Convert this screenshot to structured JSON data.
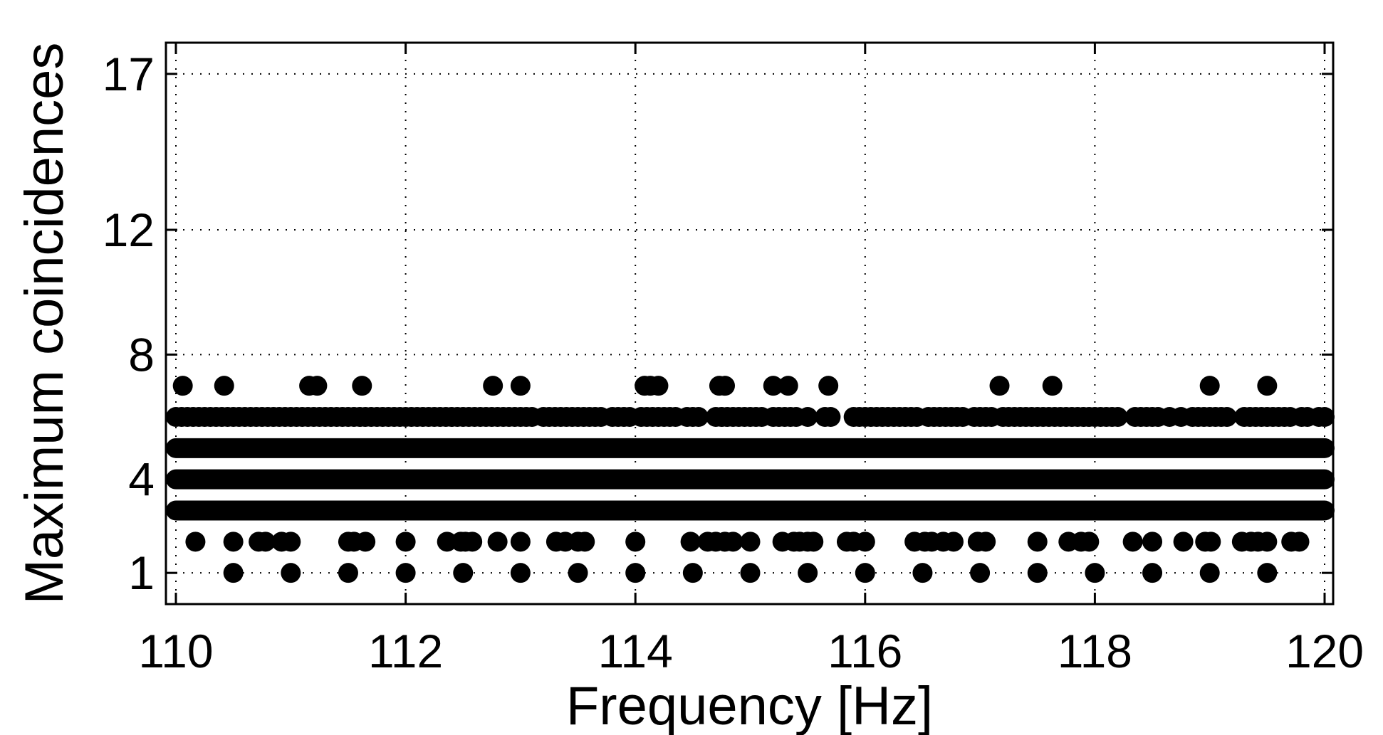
{
  "chart_data": {
    "type": "scatter",
    "xlabel": "Frequency [Hz]",
    "ylabel": "Maximum coincidences",
    "xlim": [
      110,
      120
    ],
    "ylim": [
      0,
      18
    ],
    "xticks": [
      110,
      112,
      114,
      116,
      118,
      120
    ],
    "yticks": [
      1,
      4,
      8,
      12,
      17
    ],
    "grid": true,
    "marker_color": "#000000",
    "series": [
      {
        "dense_levels": [
          3,
          4,
          5
        ],
        "dense_x_range": [
          110,
          120
        ],
        "points": [
          {
            "y": 7,
            "x": [
              110.06,
              110.42,
              111.16,
              111.23,
              111.62,
              112.76,
              113.0,
              114.08,
              114.13,
              114.2,
              114.73,
              114.78,
              115.2,
              115.33,
              115.68,
              117.17,
              117.63,
              119.0,
              119.5
            ]
          },
          {
            "y": 6,
            "x": [
              110.0,
              110.05,
              110.1,
              110.15,
              110.2,
              110.25,
              110.3,
              110.35,
              110.4,
              110.45,
              110.5,
              110.55,
              110.6,
              110.65,
              110.7,
              110.75,
              110.8,
              110.85,
              110.9,
              110.95,
              111.0,
              111.05,
              111.1,
              111.15,
              111.2,
              111.25,
              111.3,
              111.35,
              111.4,
              111.45,
              111.5,
              111.55,
              111.6,
              111.65,
              111.7,
              111.75,
              111.8,
              111.85,
              111.9,
              111.95,
              112.0,
              112.05,
              112.1,
              112.15,
              112.2,
              112.25,
              112.3,
              112.35,
              112.4,
              112.45,
              112.5,
              112.55,
              112.6,
              112.65,
              112.7,
              112.75,
              112.8,
              112.85,
              112.9,
              112.95,
              113.0,
              113.05,
              113.1,
              113.2,
              113.25,
              113.3,
              113.35,
              113.4,
              113.45,
              113.5,
              113.55,
              113.6,
              113.65,
              113.7,
              113.8,
              113.85,
              113.9,
              113.95,
              114.05,
              114.1,
              114.15,
              114.2,
              114.25,
              114.3,
              114.35,
              114.45,
              114.5,
              114.55,
              114.7,
              114.75,
              114.8,
              114.85,
              114.9,
              114.95,
              115.0,
              115.05,
              115.1,
              115.2,
              115.25,
              115.3,
              115.35,
              115.4,
              115.5,
              115.65,
              115.7,
              115.9,
              115.95,
              116.0,
              116.05,
              116.1,
              116.15,
              116.2,
              116.25,
              116.3,
              116.35,
              116.4,
              116.45,
              116.55,
              116.6,
              116.65,
              116.7,
              116.75,
              116.8,
              116.85,
              116.95,
              117.0,
              117.05,
              117.1,
              117.2,
              117.25,
              117.3,
              117.35,
              117.4,
              117.45,
              117.5,
              117.55,
              117.6,
              117.65,
              117.7,
              117.75,
              117.8,
              117.85,
              117.9,
              117.95,
              118.0,
              118.05,
              118.1,
              118.15,
              118.2,
              118.35,
              118.4,
              118.45,
              118.5,
              118.55,
              118.65,
              118.75,
              118.85,
              118.9,
              118.95,
              119.0,
              119.05,
              119.1,
              119.15,
              119.3,
              119.35,
              119.4,
              119.45,
              119.5,
              119.55,
              119.6,
              119.65,
              119.7,
              119.8,
              119.85,
              119.95,
              120.0
            ]
          },
          {
            "y": 2,
            "x": [
              110.17,
              110.5,
              110.72,
              110.78,
              110.92,
              111.0,
              111.5,
              111.55,
              111.65,
              112.0,
              112.36,
              112.48,
              112.52,
              112.58,
              112.8,
              113.0,
              113.31,
              113.39,
              113.5,
              113.56,
              114.0,
              114.48,
              114.63,
              114.7,
              114.78,
              114.85,
              115.0,
              115.28,
              115.38,
              115.43,
              115.5,
              115.55,
              115.84,
              115.9,
              116.0,
              116.43,
              116.52,
              116.58,
              116.68,
              116.77,
              116.98,
              117.05,
              117.5,
              117.77,
              117.88,
              117.95,
              118.33,
              118.5,
              118.77,
              118.96,
              119.01,
              119.28,
              119.36,
              119.42,
              119.5,
              119.71,
              119.78
            ]
          },
          {
            "y": 1,
            "x": [
              110.5,
              111.0,
              111.5,
              112.0,
              112.5,
              113.0,
              113.5,
              114.0,
              114.5,
              115.0,
              115.5,
              116.0,
              116.5,
              117.0,
              117.5,
              118.0,
              118.5,
              119.0,
              119.5
            ]
          }
        ]
      }
    ]
  }
}
